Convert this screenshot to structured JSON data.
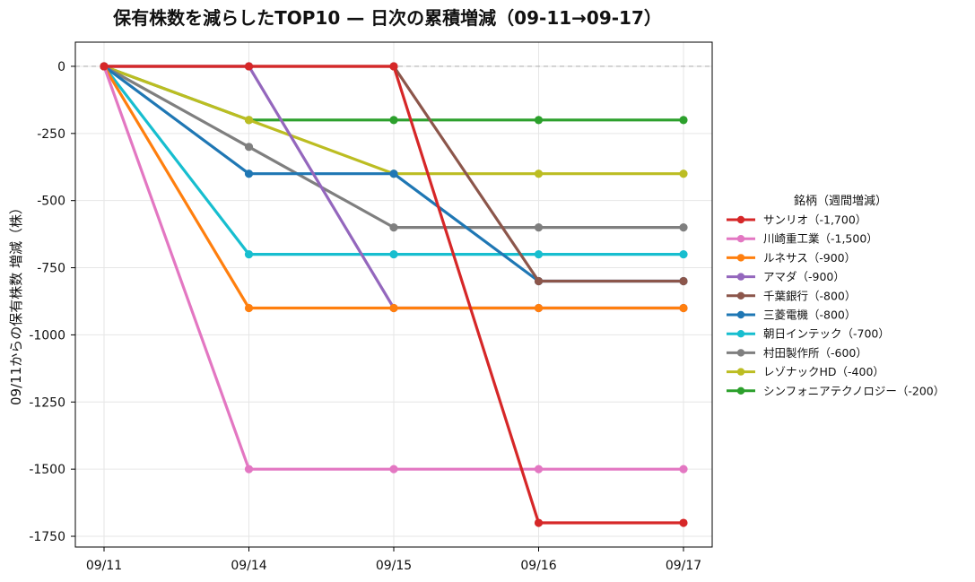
{
  "chart_data": {
    "type": "line",
    "title": "保有株数を減らしたTOP10 — 日次の累積増減（09-11→09-17）",
    "xlabel": "",
    "ylabel": "09/11からの保有株数 増減（株）",
    "x": [
      "09/11",
      "09/14",
      "09/15",
      "09/16",
      "09/17"
    ],
    "yticks": [
      0,
      -250,
      -500,
      -750,
      -1000,
      -1250,
      -1500,
      -1750
    ],
    "ylim": [
      -1790,
      90
    ],
    "grid": true,
    "zero_line": true,
    "legend": {
      "title": "銘柄（週間増減）",
      "placement": "right"
    },
    "series": [
      {
        "name": "サンリオ（-1,700）",
        "color": "#d62728",
        "values": [
          0,
          0,
          0,
          -1700,
          -1700
        ]
      },
      {
        "name": "川崎重工業（-1,500）",
        "color": "#e377c2",
        "values": [
          0,
          -1500,
          -1500,
          -1500,
          -1500
        ]
      },
      {
        "name": "ルネサス（-900）",
        "color": "#ff7f0e",
        "values": [
          0,
          -900,
          -900,
          -900,
          -900
        ]
      },
      {
        "name": "アマダ（-900）",
        "color": "#9467bd",
        "values": [
          0,
          0,
          -900,
          -900,
          -900
        ]
      },
      {
        "name": "千葉銀行（-800）",
        "color": "#8c564b",
        "values": [
          0,
          0,
          0,
          -800,
          -800
        ]
      },
      {
        "name": "三菱電機（-800）",
        "color": "#1f77b4",
        "values": [
          0,
          -400,
          -400,
          -800,
          -800
        ]
      },
      {
        "name": "朝日インテック（-700）",
        "color": "#17becf",
        "values": [
          0,
          -700,
          -700,
          -700,
          -700
        ]
      },
      {
        "name": "村田製作所（-600）",
        "color": "#7f7f7f",
        "values": [
          0,
          -300,
          -600,
          -600,
          -600
        ]
      },
      {
        "name": "レゾナックHD（-400）",
        "color": "#bcbd22",
        "values": [
          0,
          -200,
          -400,
          -400,
          -400
        ]
      },
      {
        "name": "シンフォニアテクノロジー（-200）",
        "color": "#2ca02c",
        "values": [
          0,
          -200,
          -200,
          -200,
          -200
        ]
      }
    ]
  }
}
